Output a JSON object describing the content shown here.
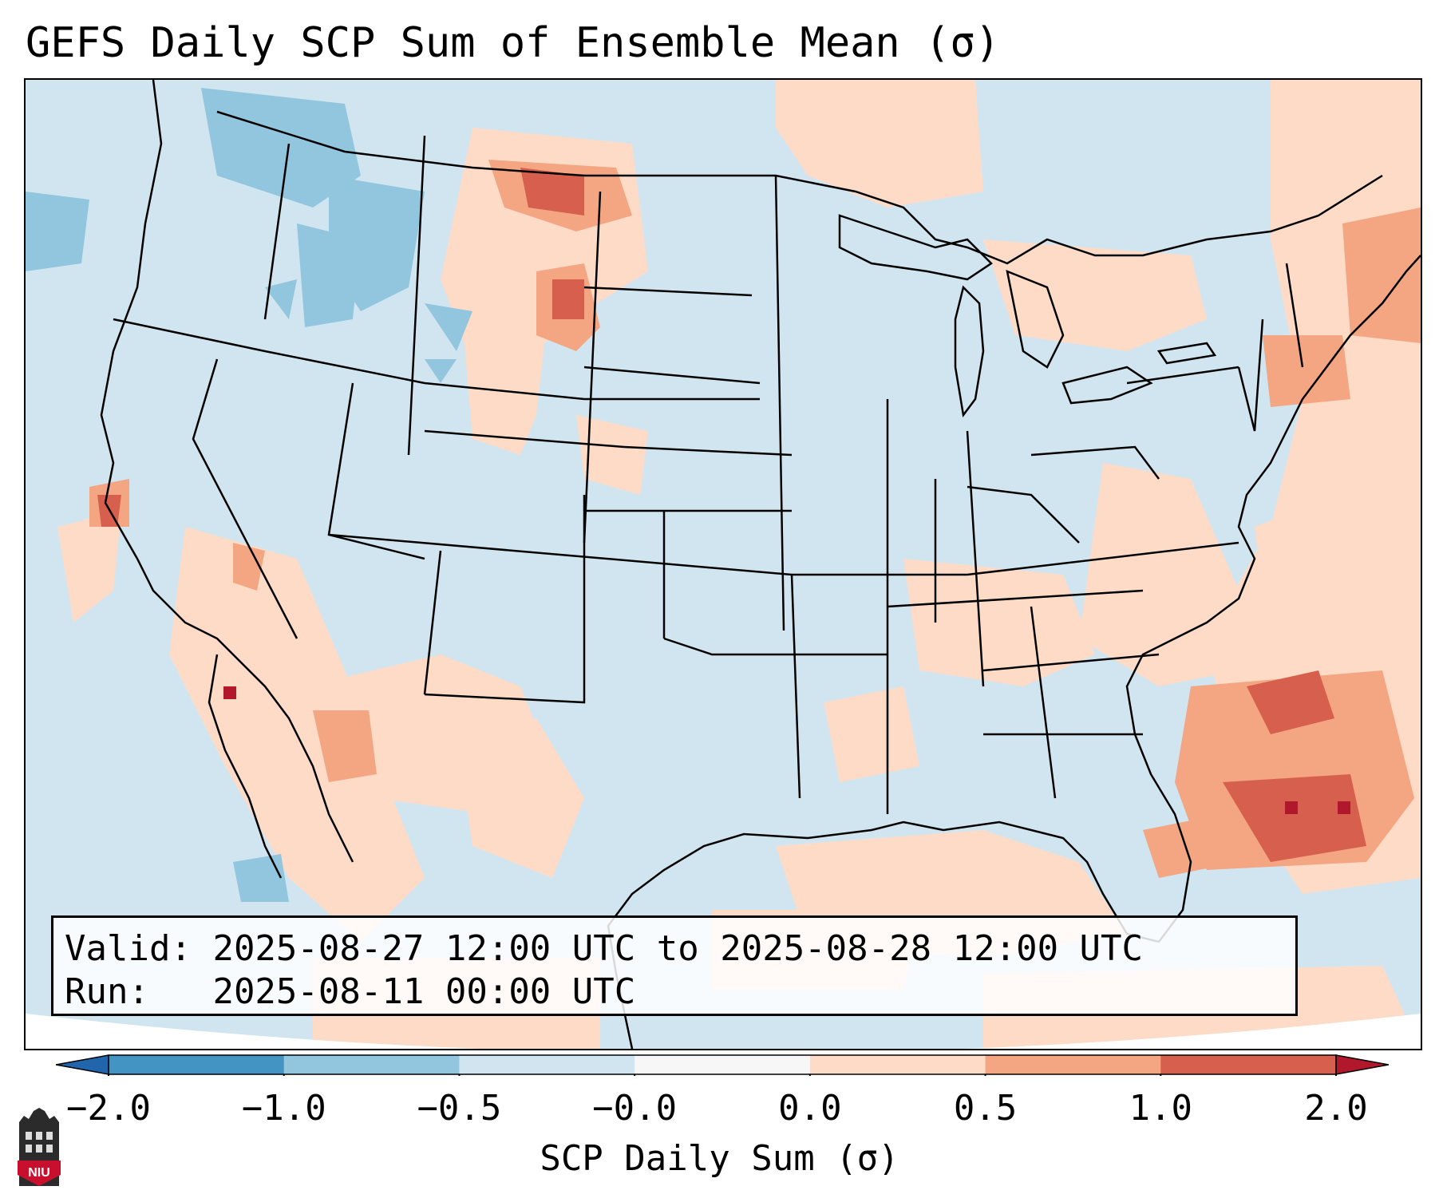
{
  "title": "GEFS Daily SCP Sum of Ensemble Mean (σ)",
  "info": {
    "valid_label": "Valid:",
    "valid_value": "2025-08-27 12:00 UTC to 2025-08-28 12:00 UTC",
    "run_label": "Run:",
    "run_value": "2025-08-11 00:00 UTC"
  },
  "colorbar": {
    "label": "SCP Daily Sum (σ)",
    "ticks": [
      "−2.0",
      "−1.0",
      "−0.5",
      "−0.0",
      "0.0",
      "0.5",
      "1.0",
      "2.0"
    ],
    "bin_colors": [
      "#4393c3",
      "#92c5de",
      "#d1e5f0",
      "#f7f7f7",
      "#fddbc7",
      "#f4a582",
      "#d6604d"
    ],
    "under_color": "#2166ac",
    "over_color": "#b2182b"
  },
  "logo": {
    "text": "NIU"
  },
  "map": {
    "projection": "Lambert Conformal CONUS",
    "background_color": "#d1e5f0",
    "anomaly_regions": [
      {
        "name": "northern-high-plains",
        "level": "positive-strong"
      },
      {
        "name": "southeast-atlantic",
        "level": "positive-strong"
      },
      {
        "name": "pacific-northwest",
        "level": "negative-weak"
      },
      {
        "name": "northeast-coast",
        "level": "positive-moderate"
      },
      {
        "name": "gulf-coast",
        "level": "positive-weak"
      },
      {
        "name": "desert-southwest",
        "level": "positive-moderate"
      }
    ]
  }
}
